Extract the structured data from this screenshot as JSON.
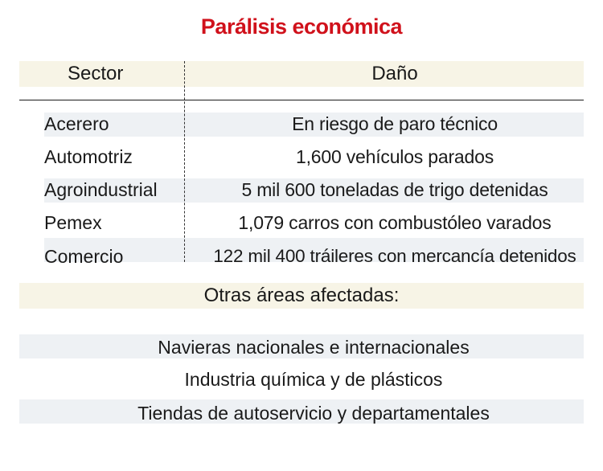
{
  "title": "Parálisis económica",
  "header": {
    "sector": "Sector",
    "dano": "Daño"
  },
  "rows": [
    {
      "sector": "Acerero",
      "dano": "En riesgo de paro técnico"
    },
    {
      "sector": "Automotriz",
      "dano": "1,600 vehículos parados"
    },
    {
      "sector": "Agroindustrial",
      "dano": "5 mil 600 toneladas de trigo detenidas"
    },
    {
      "sector": "Pemex",
      "dano": "1,079 carros con combustóleo varados"
    },
    {
      "sector": "Comercio",
      "dano": "122 mil 400 tráileres con mercancía detenidos"
    }
  ],
  "other_areas": {
    "heading": "Otras áreas afectadas:",
    "items": [
      "Navieras nacionales e internacionales",
      "Industria química y de plásticos",
      "Tiendas de autoservicio y departamentales"
    ]
  }
}
